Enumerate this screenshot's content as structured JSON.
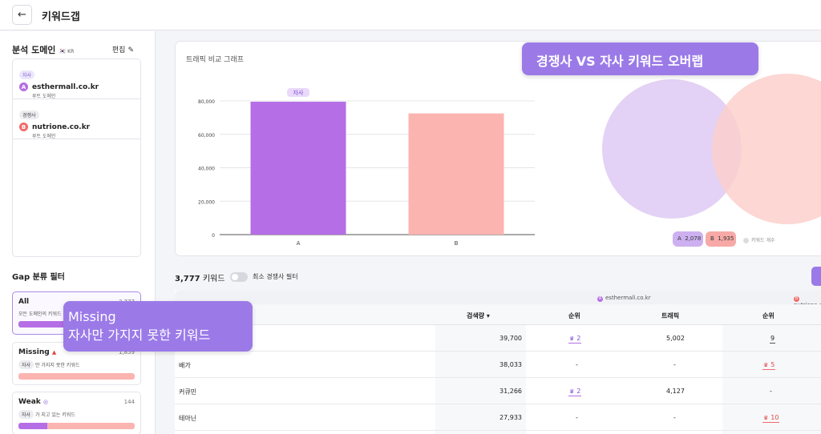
{
  "header": {
    "back_icon": "←",
    "title": "키워드갭"
  },
  "sidebar": {
    "title": "분석 도메인",
    "flag_icon": "🇰🇷",
    "country": "KR",
    "edit_label": "편집",
    "edit_icon": "✎",
    "domains": [
      {
        "tag": "자사",
        "badge": "A",
        "name": "esthermall.co.kr",
        "sub": "루트 도메인"
      },
      {
        "tag": "경쟁사",
        "badge": "B",
        "name": "nutrione.co.kr",
        "sub": "루트 도메인"
      }
    ],
    "filter_title": "Gap 분류 필터",
    "filters": [
      {
        "name": "All",
        "count": "3,777",
        "desc": "모든 도메인의 키워드"
      },
      {
        "name": "Missing",
        "icon": "▲",
        "count": "1,859",
        "tag": "자사",
        "desc": "만 가지지 못한 키워드"
      },
      {
        "name": "Weak",
        "icon": "◎",
        "count": "144",
        "tag": "자사",
        "desc": "가 지고 있는 키워드"
      }
    ]
  },
  "chart_card": {
    "title": "트래픽 비교 그래프"
  },
  "chart_data": {
    "type": "bar",
    "categories": [
      "A",
      "B"
    ],
    "values": [
      79500,
      72500
    ],
    "ylim": [
      0,
      80000
    ],
    "yticks": [
      "0",
      "20,000",
      "40,000",
      "60,000",
      "80,000"
    ],
    "bar_label": "자사",
    "colors": [
      "#b56ee6",
      "#fbb4b0"
    ],
    "grid": true
  },
  "venn": {
    "legend": [
      {
        "badge": "A",
        "value": "2,078"
      },
      {
        "badge": "B",
        "value": "1,935"
      }
    ],
    "note": "키워드 개수",
    "colors": {
      "a": "#e3d2f5",
      "b": "#fbd0cd",
      "overlap": "#f0bfc9"
    }
  },
  "overlays": {
    "top": "경쟁사 VS 자사 키워드 오버랩",
    "left_line1": "Missing",
    "left_line2": "자사만 가지지 못한 키워드"
  },
  "toolbar": {
    "count": "3,777",
    "count_label": "키워드",
    "toggle_label": "최소 경쟁사 필터"
  },
  "table": {
    "group_a": "esthermall.co.kr",
    "group_b": "nutrione.co.kr",
    "headers": {
      "volume": "검색량 ▾",
      "rank_a": "순위",
      "traffic_a": "트래픽",
      "rank_b": "순위"
    },
    "rows": [
      {
        "keyword": "",
        "volume": "39,700",
        "rank_a": "2",
        "traffic_a": "5,002",
        "rank_b": "9"
      },
      {
        "keyword": "배가",
        "volume": "38,033",
        "rank_a": "-",
        "traffic_a": "-",
        "rank_b": "5"
      },
      {
        "keyword": "커큐민",
        "volume": "31,266",
        "rank_a": "2",
        "traffic_a": "4,127",
        "rank_b": "-"
      },
      {
        "keyword": "테아닌",
        "volume": "27,933",
        "rank_a": "-",
        "traffic_a": "-",
        "rank_b": "10"
      }
    ]
  }
}
